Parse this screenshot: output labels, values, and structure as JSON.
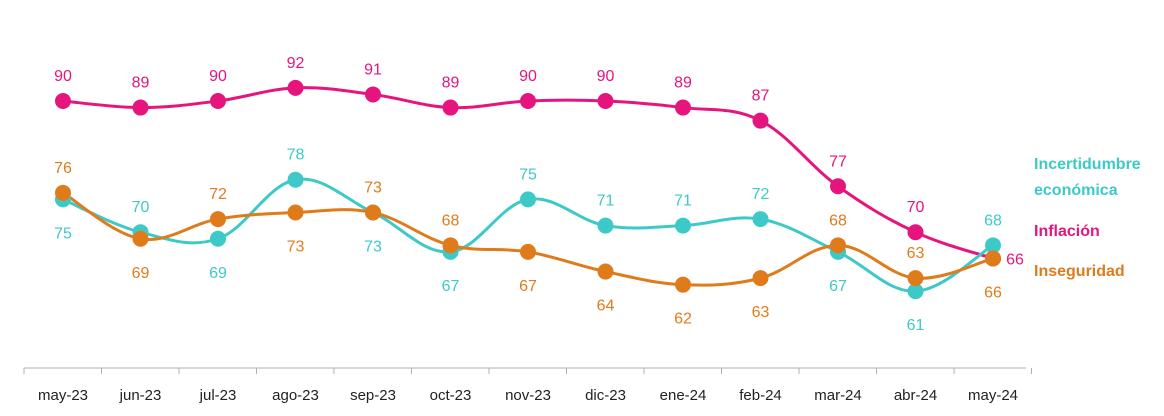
{
  "chart_data": {
    "type": "line",
    "title": "",
    "xlabel": "",
    "ylabel": "",
    "categories": [
      "may-23",
      "jun-23",
      "jul-23",
      "ago-23",
      "sep-23",
      "oct-23",
      "nov-23",
      "dic-23",
      "ene-24",
      "feb-24",
      "mar-24",
      "abr-24",
      "may-24"
    ],
    "grid": false,
    "legend_position": "right",
    "series": [
      {
        "name": "Inflación",
        "legend_lines": [
          "Inflación"
        ],
        "color": "#e6157d",
        "values": [
          90,
          89,
          90,
          92,
          91,
          89,
          90,
          90,
          89,
          87,
          77,
          70,
          66
        ]
      },
      {
        "name": "Incertidumbre económica",
        "legend_lines": [
          "Incertidumbre",
          "económica"
        ],
        "color": "#3ec9c9",
        "values": [
          75,
          70,
          69,
          78,
          73,
          67,
          75,
          71,
          71,
          72,
          67,
          61,
          68
        ]
      },
      {
        "name": "Inseguridad",
        "legend_lines": [
          "Inseguridad"
        ],
        "color": "#e07b1c",
        "values": [
          76,
          69,
          72,
          73,
          73,
          68,
          67,
          64,
          62,
          63,
          68,
          63,
          66
        ]
      }
    ]
  }
}
